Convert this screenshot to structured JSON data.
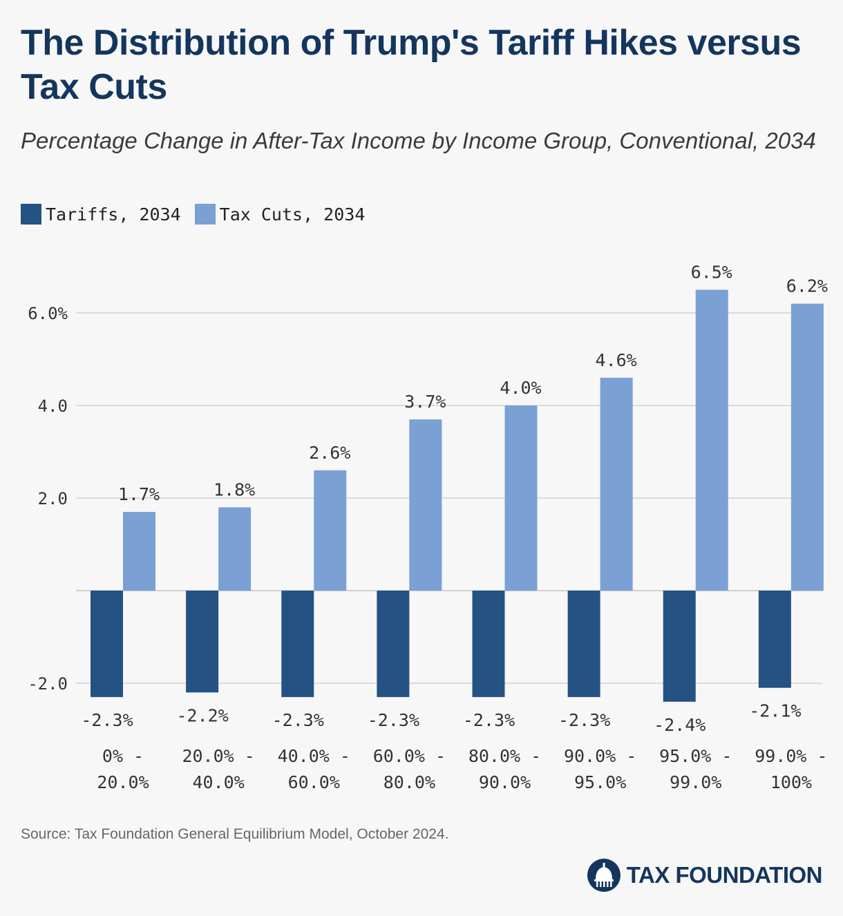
{
  "title": "The Distribution of Trump's Tariff Hikes versus Tax Cuts",
  "subtitle": "Percentage Change in After-Tax Income by Income Group, Conventional, 2034",
  "legend": [
    {
      "label": "Tariffs, 2034",
      "color": "#245383"
    },
    {
      "label": "Tax Cuts, 2034",
      "color": "#7aa0d4"
    }
  ],
  "source": "Source: Tax Foundation General Equilibrium Model, October 2024.",
  "logo": {
    "text": "TAX FOUNDATION",
    "icon": "capitol-dome-icon"
  },
  "chart_data": {
    "type": "bar",
    "title": "The Distribution of Trump's Tariff Hikes versus Tax Cuts",
    "subtitle": "Percentage Change in After-Tax Income by Income Group, Conventional, 2034",
    "categories": [
      [
        "0% -",
        "20.0%"
      ],
      [
        "20.0% -",
        "40.0%"
      ],
      [
        "40.0% -",
        "60.0%"
      ],
      [
        "60.0% -",
        "80.0%"
      ],
      [
        "80.0% -",
        "90.0%"
      ],
      [
        "90.0% -",
        "95.0%"
      ],
      [
        "95.0% -",
        "99.0%"
      ],
      [
        "99.0% -",
        "100%"
      ]
    ],
    "series": [
      {
        "name": "Tariffs, 2034",
        "color": "#245383",
        "values": [
          -2.3,
          -2.2,
          -2.3,
          -2.3,
          -2.3,
          -2.3,
          -2.4,
          -2.1
        ],
        "labels": [
          "-2.3%",
          "-2.2%",
          "-2.3%",
          "-2.3%",
          "-2.3%",
          "-2.3%",
          "-2.4%",
          "-2.1%"
        ]
      },
      {
        "name": "Tax Cuts, 2034",
        "color": "#7aa0d4",
        "values": [
          1.7,
          1.8,
          2.6,
          3.7,
          4.0,
          4.6,
          6.5,
          6.2
        ],
        "labels": [
          "1.7%",
          "1.8%",
          "2.6%",
          "3.7%",
          "4.0%",
          "4.6%",
          "6.5%",
          "6.2%"
        ]
      }
    ],
    "yticks": [
      -2,
      2,
      4,
      6
    ],
    "ytick_labels": [
      "-2.0",
      "2.0",
      "4.0",
      "6.0%"
    ],
    "ylim": [
      -2.4,
      6.5
    ],
    "grid": true,
    "legend_position": "top-left"
  }
}
